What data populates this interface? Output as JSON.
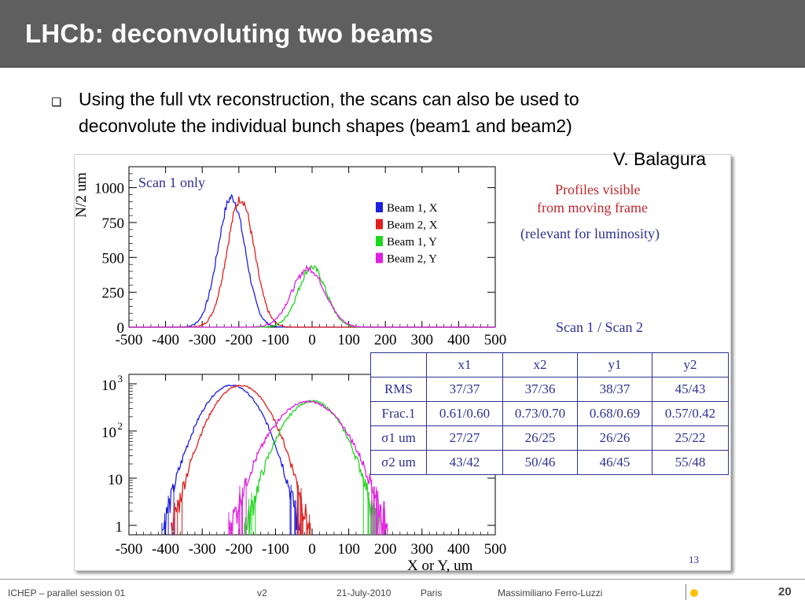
{
  "slide": {
    "title": "LHCb: deconvoluting two beams",
    "bullet_line1": "Using the full vtx reconstruction, the scans can also be used to",
    "bullet_line2": "deconvolute the individual bunch shapes (beam1 and beam2)",
    "author": "V. Balagura"
  },
  "notes": {
    "profiles_line1": "Profiles visible",
    "profiles_line2": "from moving frame",
    "relevance": "(relevant for luminosity)",
    "scan_ratio": "Scan 1 / Scan 2",
    "inner_page": "13"
  },
  "colors": {
    "beam1_x": "#1f1fe0",
    "beam2_x": "#e01f1f",
    "beam1_y": "#1fd61f",
    "beam2_y": "#e01fe0",
    "annotation_red": "#c1272d",
    "annotation_blue": "#2e3192"
  },
  "table": {
    "headers": [
      "",
      "x1",
      "x2",
      "y1",
      "y2"
    ],
    "rows": [
      [
        "RMS",
        "37/37",
        "37/36",
        "38/37",
        "45/43"
      ],
      [
        "Frac.1",
        "0.61/0.60",
        "0.73/0.70",
        "0.68/0.69",
        "0.57/0.42"
      ],
      [
        "σ1 um",
        "27/27",
        "26/25",
        "26/26",
        "25/22"
      ],
      [
        "σ2 um",
        "43/42",
        "50/46",
        "46/45",
        "55/48"
      ]
    ]
  },
  "chart_data": [
    {
      "type": "line",
      "title": "Scan 1 only",
      "ylabel": "N/2 um",
      "xlabel": "",
      "xlim": [
        -500,
        500
      ],
      "ylim": [
        0,
        1150
      ],
      "xticks": [
        -500,
        -400,
        -300,
        -200,
        -100,
        0,
        100,
        200,
        300,
        400,
        500
      ],
      "yticks": [
        0,
        250,
        500,
        750,
        1000
      ],
      "ytick_labels": [
        "0",
        "250",
        "500",
        "750",
        "1000"
      ],
      "legend": {
        "placement": "right",
        "entries": [
          "Beam 1, X",
          "Beam 2, X",
          "Beam 1, Y",
          "Beam 2, Y"
        ]
      },
      "series": [
        {
          "name": "Beam 1, X",
          "peak_x": -220,
          "peak_y": 930,
          "sigma": 37
        },
        {
          "name": "Beam 2, X",
          "peak_x": -195,
          "peak_y": 920,
          "sigma": 37
        },
        {
          "name": "Beam 1, Y",
          "peak_x": 0,
          "peak_y": 430,
          "sigma": 38
        },
        {
          "name": "Beam 2, Y",
          "peak_x": -10,
          "peak_y": 420,
          "sigma": 45
        }
      ]
    },
    {
      "type": "line",
      "title": "",
      "xlabel": "X or Y,   um",
      "ylabel": "",
      "xlim": [
        -500,
        500
      ],
      "ylim_log10": [
        -0.2,
        3.2
      ],
      "xticks": [
        -500,
        -400,
        -300,
        -200,
        -100,
        0,
        100,
        200,
        300,
        400,
        500
      ],
      "yticks_log10": [
        0,
        1,
        2,
        3
      ],
      "ytick_labels": [
        "1",
        "10",
        "10",
        "10"
      ],
      "ytick_exponents": [
        "",
        "",
        "2",
        "3"
      ],
      "y_scale": "log",
      "series": [
        {
          "name": "Beam 1, X",
          "peak_x": -220,
          "peak_y": 930,
          "sigma": 37
        },
        {
          "name": "Beam 2, X",
          "peak_x": -195,
          "peak_y": 920,
          "sigma": 37
        },
        {
          "name": "Beam 1, Y",
          "peak_x": 0,
          "peak_y": 430,
          "sigma": 38
        },
        {
          "name": "Beam 2, Y",
          "peak_x": -10,
          "peak_y": 420,
          "sigma": 45
        }
      ]
    }
  ],
  "footer": {
    "conference": "ICHEP – parallel session 01",
    "version": "v2",
    "date": "21-July-2010",
    "city": "Paris",
    "presenter": "Massimiliano Ferro-Luzzi",
    "page_number": "20"
  }
}
